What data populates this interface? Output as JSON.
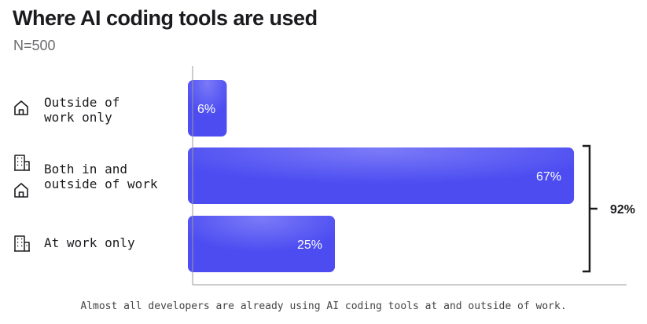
{
  "chart_data": {
    "type": "bar",
    "orientation": "horizontal",
    "title": "Where AI coding tools are used",
    "subtitle": "N=500",
    "categories": [
      "Outside of work only",
      "Both in and outside of work",
      "At work only"
    ],
    "category_lines": [
      [
        "Outside of",
        "work only"
      ],
      [
        "Both in and",
        "outside of work"
      ],
      [
        "At work only"
      ]
    ],
    "category_icons": [
      [
        "house-icon"
      ],
      [
        "building-icon",
        "house-icon"
      ],
      [
        "building-icon"
      ]
    ],
    "values": [
      6,
      67,
      25
    ],
    "value_labels": [
      "6%",
      "67%",
      "25%"
    ],
    "xlim": [
      0,
      100
    ],
    "grid": false,
    "annotation": {
      "label": "92%",
      "spans": [
        "Both in and outside of work",
        "At work only"
      ]
    },
    "caption": "Almost all developers are already using AI coding tools at and outside of work.",
    "colors": {
      "bar": "#4c4cf1",
      "bar_highlight": "#7a7af8",
      "text": "#1b1b1f"
    }
  }
}
